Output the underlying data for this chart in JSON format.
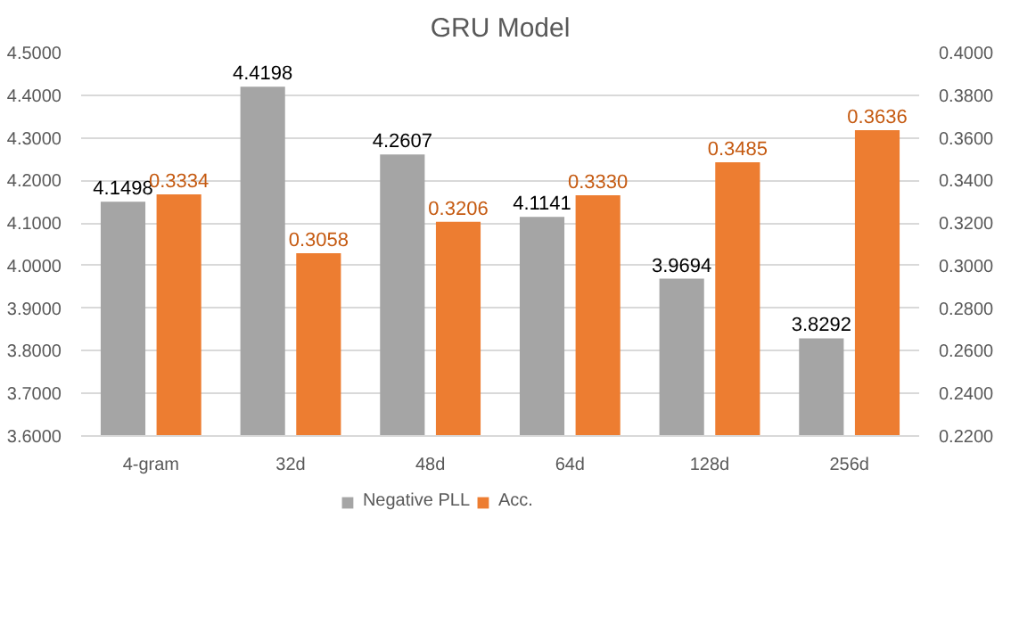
{
  "chart_data": {
    "type": "bar",
    "title": "GRU Model",
    "categories": [
      "4-gram",
      "32d",
      "48d",
      "64d",
      "128d",
      "256d"
    ],
    "series": [
      {
        "name": "Negative PLL",
        "color": "#a5a5a5",
        "values": [
          4.1498,
          4.4198,
          4.2607,
          4.1141,
          3.9694,
          3.8292
        ],
        "value_labels": [
          "4.1498",
          "4.4198",
          "4.2607",
          "4.1141",
          "3.9694",
          "3.8292"
        ]
      },
      {
        "name": "Acc.",
        "color": "#ed7d31",
        "axis": "y2",
        "values": [
          0.3334,
          0.3058,
          0.3206,
          0.333,
          0.3485,
          0.3636
        ],
        "value_labels": [
          "0.3334",
          "0.3058",
          "0.3206",
          "0.3330",
          "0.3485",
          "0.3636"
        ]
      }
    ],
    "ylim": [
      3.6,
      4.5
    ],
    "yticks": [
      {
        "value": 3.6,
        "label": "3.6000"
      },
      {
        "value": 3.7,
        "label": "3.7000"
      },
      {
        "value": 3.8,
        "label": "3.8000"
      },
      {
        "value": 3.9,
        "label": "3.9000"
      },
      {
        "value": 4.0,
        "label": "4.0000"
      },
      {
        "value": 4.1,
        "label": "4.1000"
      },
      {
        "value": 4.2,
        "label": "4.2000"
      },
      {
        "value": 4.3,
        "label": "4.3000"
      },
      {
        "value": 4.4,
        "label": "4.4000"
      },
      {
        "value": 4.5,
        "label": "4.5000"
      }
    ],
    "y2lim": [
      0.22,
      0.4
    ],
    "y2ticks": [
      {
        "value": 0.22,
        "label": "0.2200"
      },
      {
        "value": 0.24,
        "label": "0.2400"
      },
      {
        "value": 0.26,
        "label": "0.2600"
      },
      {
        "value": 0.28,
        "label": "0.2800"
      },
      {
        "value": 0.3,
        "label": "0.3000"
      },
      {
        "value": 0.32,
        "label": "0.3200"
      },
      {
        "value": 0.34,
        "label": "0.3400"
      },
      {
        "value": 0.36,
        "label": "0.3600"
      },
      {
        "value": 0.38,
        "label": "0.3800"
      },
      {
        "value": 0.4,
        "label": "0.4000"
      }
    ],
    "grid": "y",
    "legend": "bottom"
  }
}
